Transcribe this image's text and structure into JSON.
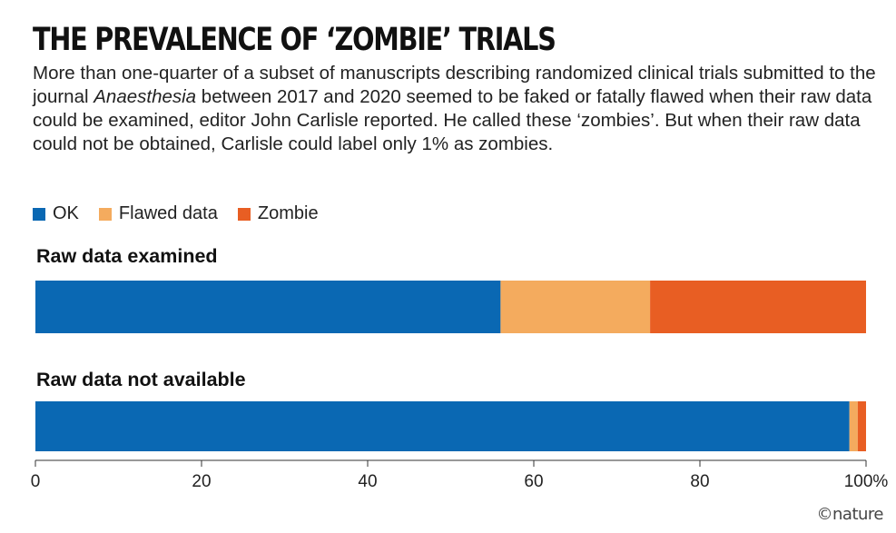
{
  "title": "THE PREVALENCE OF ‘ZOMBIE’ TRIALS",
  "subtitle_parts": {
    "before": "More than one-quarter of a subset of manuscripts describing randomized clinical trials submitted to the journal ",
    "journal": "Anaesthesia",
    "after": " between 2017 and 2020 seemed to be faked or fatally flawed when their raw data could be examined, editor John Carlisle reported. He called these ‘zombies’. But when their raw data could not be obtained, Carlisle could label only 1% as zombies."
  },
  "legend": [
    {
      "label": "OK",
      "color": "#0a68b3"
    },
    {
      "label": "Flawed data",
      "color": "#f4ab5e"
    },
    {
      "label": "Zombie",
      "color": "#e85e23"
    }
  ],
  "chart_data": {
    "type": "bar",
    "orientation": "horizontal",
    "stacked": true,
    "categories": [
      "Raw data examined",
      "Raw data not available"
    ],
    "series": [
      {
        "name": "OK",
        "values": [
          56,
          98
        ]
      },
      {
        "name": "Flawed data",
        "values": [
          18,
          1
        ]
      },
      {
        "name": "Zombie",
        "values": [
          26,
          1
        ]
      }
    ],
    "xlim": [
      0,
      100
    ],
    "xticks": [
      "0",
      "20",
      "40",
      "60",
      "80",
      "100%"
    ],
    "grid": false,
    "legend_position": "top-left"
  },
  "credit": "©nature"
}
